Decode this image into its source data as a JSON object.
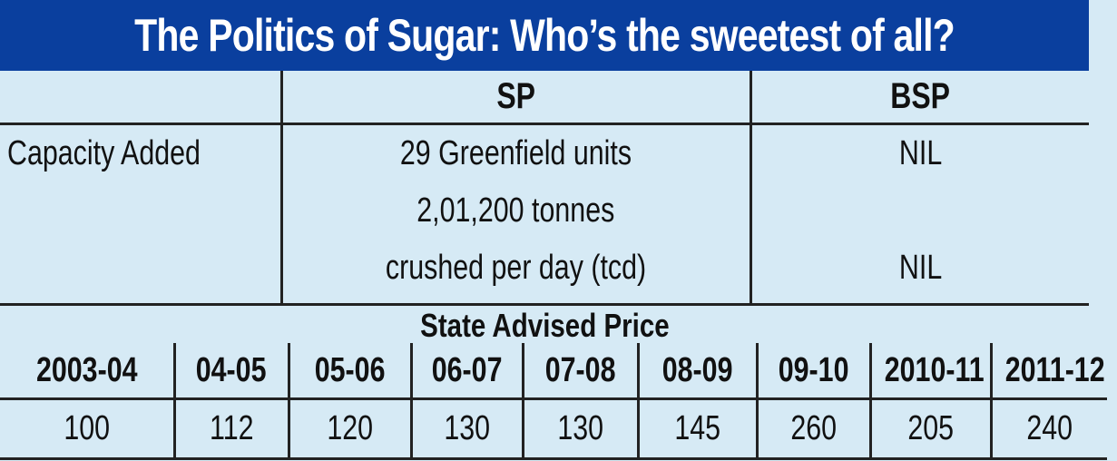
{
  "title": "The Politics of Sugar: Who’s the sweetest of all?",
  "comparison": {
    "headers": [
      "",
      "SP",
      "BSP"
    ],
    "row_label": "Capacity Added",
    "sp_lines": [
      "29 Greenfield units",
      "2,01,200 tonnes",
      "crushed per day (tcd)"
    ],
    "bsp_lines": [
      "NIL",
      "",
      "NIL"
    ]
  },
  "sap": {
    "title": "State Advised Price",
    "years": [
      "2003-04",
      "04-05",
      "05-06",
      "06-07",
      "07-08",
      "08-09",
      "09-10",
      "2010-11",
      "2011-12"
    ],
    "values": [
      "100",
      "112",
      "120",
      "130",
      "130",
      "145",
      "260",
      "205",
      "240"
    ]
  },
  "colors": {
    "title_bar": "#0a3f9e",
    "title_text": "#ffffff",
    "background": "#d6eaf5",
    "rules": "#222222"
  }
}
